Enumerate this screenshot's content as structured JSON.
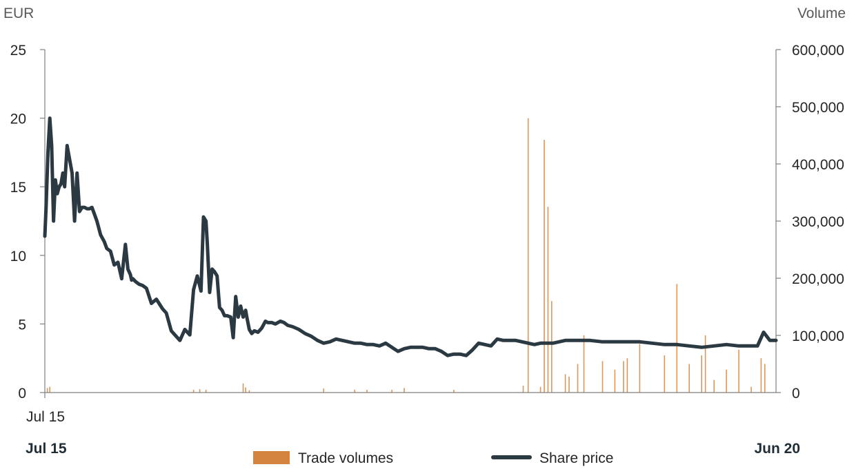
{
  "chart_data": {
    "type": "line",
    "left_axis": {
      "unit": "EUR",
      "ticks": [
        "0",
        "5",
        "10",
        "15",
        "20",
        "25"
      ],
      "range": [
        0,
        25
      ]
    },
    "right_axis": {
      "unit": "Volume",
      "ticks": [
        "0",
        "100,000",
        "200,000",
        "300,000",
        "400,000",
        "500,000",
        "600,000"
      ],
      "range": [
        0,
        600000
      ]
    },
    "x_axis": {
      "start_label": "Jul 15",
      "period_start": "Jul 15",
      "period_end": "Jun 20",
      "range_months": [
        0,
        59
      ]
    },
    "legend": {
      "position": "bottom",
      "volume_label": "Trade volumes",
      "price_label": "Share price"
    },
    "colors": {
      "volume": "#d4843e",
      "price": "#2b3a42",
      "axis": "#7f7f7f"
    },
    "series": [
      {
        "name": "Share price",
        "axis": "left",
        "x_months": [
          0,
          0.1,
          0.25,
          0.4,
          0.55,
          0.7,
          0.85,
          1.0,
          1.15,
          1.3,
          1.45,
          1.6,
          1.8,
          2.0,
          2.2,
          2.4,
          2.6,
          2.8,
          3.0,
          3.2,
          3.4,
          3.6,
          3.8,
          4.0,
          4.2,
          4.5,
          4.8,
          5.0,
          5.3,
          5.6,
          5.9,
          6.2,
          6.5,
          6.7,
          6.9,
          7.0,
          7.1,
          7.3,
          7.6,
          7.9,
          8.2,
          8.6,
          9.0,
          9.5,
          9.8,
          10.2,
          10.5,
          10.9,
          11.3,
          11.7,
          12.0,
          12.3,
          12.6,
          12.8,
          13.0,
          13.1,
          13.3,
          13.5,
          13.7,
          13.9,
          14.1,
          14.3,
          14.5,
          14.7,
          15.0,
          15.2,
          15.4,
          15.6,
          15.8,
          16.0,
          16.2,
          16.3,
          16.5,
          16.7,
          16.9,
          17.2,
          17.5,
          17.8,
          18.0,
          18.3,
          18.6,
          19.0,
          19.3,
          19.6,
          20.0,
          20.5,
          21.0,
          21.5,
          22.0,
          22.5,
          23.0,
          23.5,
          24.0,
          24.5,
          25.0,
          25.5,
          26.0,
          26.5,
          27.0,
          27.5,
          28.0,
          28.5,
          29.0,
          29.5,
          30.0,
          30.5,
          31.0,
          31.5,
          32.0,
          32.5,
          33.0,
          33.5,
          34.0,
          34.5,
          35.0,
          35.5,
          36.0,
          36.5,
          37.0,
          37.5,
          38.0,
          38.5,
          39.0,
          39.5,
          40.0,
          40.5,
          41.0,
          41.5,
          42.0,
          43.0,
          44.0,
          45.0,
          46.0,
          47.0,
          48.0,
          49.0,
          50.0,
          51.0,
          52.0,
          53.0,
          54.0,
          55.0,
          56.0,
          57.0,
          57.5,
          58.0,
          58.5,
          59.0
        ],
        "values": [
          11.4,
          13.5,
          17.5,
          20.0,
          18.0,
          12.5,
          15.5,
          14.5,
          15.0,
          15.2,
          16.0,
          15.0,
          18.0,
          17.0,
          16.0,
          12.5,
          16.0,
          13.2,
          13.5,
          13.5,
          13.4,
          13.4,
          13.5,
          13.0,
          12.5,
          11.5,
          11.0,
          10.5,
          10.3,
          9.3,
          9.5,
          8.3,
          10.8,
          9.0,
          8.6,
          8.2,
          8.3,
          8.1,
          7.9,
          7.8,
          7.6,
          6.5,
          6.8,
          6.1,
          5.8,
          4.5,
          4.2,
          3.8,
          4.6,
          4.2,
          7.5,
          8.5,
          7.4,
          12.8,
          12.5,
          11.0,
          7.3,
          9.0,
          8.8,
          8.5,
          6.2,
          6.0,
          5.6,
          5.6,
          5.5,
          4.0,
          7.0,
          5.5,
          6.3,
          5.5,
          6.0,
          5.5,
          4.6,
          4.3,
          4.5,
          4.4,
          4.7,
          5.2,
          5.1,
          5.1,
          5.0,
          5.2,
          5.1,
          4.9,
          4.8,
          4.6,
          4.3,
          4.1,
          3.8,
          3.6,
          3.7,
          3.9,
          3.8,
          3.7,
          3.6,
          3.6,
          3.5,
          3.5,
          3.4,
          3.6,
          3.3,
          3.0,
          3.2,
          3.3,
          3.3,
          3.3,
          3.2,
          3.2,
          3.0,
          2.7,
          2.8,
          2.8,
          2.7,
          3.1,
          3.6,
          3.5,
          3.4,
          3.9,
          3.8,
          3.8,
          3.8,
          3.7,
          3.6,
          3.5,
          3.6,
          3.6,
          3.6,
          3.7,
          3.8,
          3.8,
          3.8,
          3.7,
          3.7,
          3.7,
          3.7,
          3.6,
          3.5,
          3.5,
          3.4,
          3.3,
          3.4,
          3.5,
          3.4,
          3.4,
          3.4,
          4.4,
          3.8,
          3.8
        ]
      },
      {
        "name": "Trade volumes",
        "axis": "right",
        "x_months": [
          0.2,
          0.4,
          12.0,
          12.5,
          13.0,
          16.0,
          16.2,
          16.5,
          22.5,
          25.0,
          26.0,
          28.0,
          29.0,
          33.0,
          38.6,
          39.0,
          40.0,
          40.3,
          40.6,
          40.9,
          42.0,
          42.3,
          43.0,
          43.5,
          45.0,
          46.0,
          46.7,
          47.0,
          48.0,
          50.0,
          51.0,
          52.0,
          53.0,
          53.3,
          54.0,
          55.0,
          56.0,
          57.0,
          57.8,
          58.1
        ],
        "values": [
          8000,
          10000,
          5000,
          6000,
          5000,
          16000,
          9000,
          4000,
          7000,
          5000,
          5000,
          5000,
          8000,
          5000,
          12000,
          480000,
          10000,
          442000,
          325000,
          160000,
          32000,
          28000,
          50000,
          100000,
          55000,
          40000,
          55000,
          60000,
          85000,
          65000,
          190000,
          50000,
          65000,
          100000,
          22000,
          40000,
          75000,
          10000,
          60000,
          50000
        ]
      }
    ]
  }
}
